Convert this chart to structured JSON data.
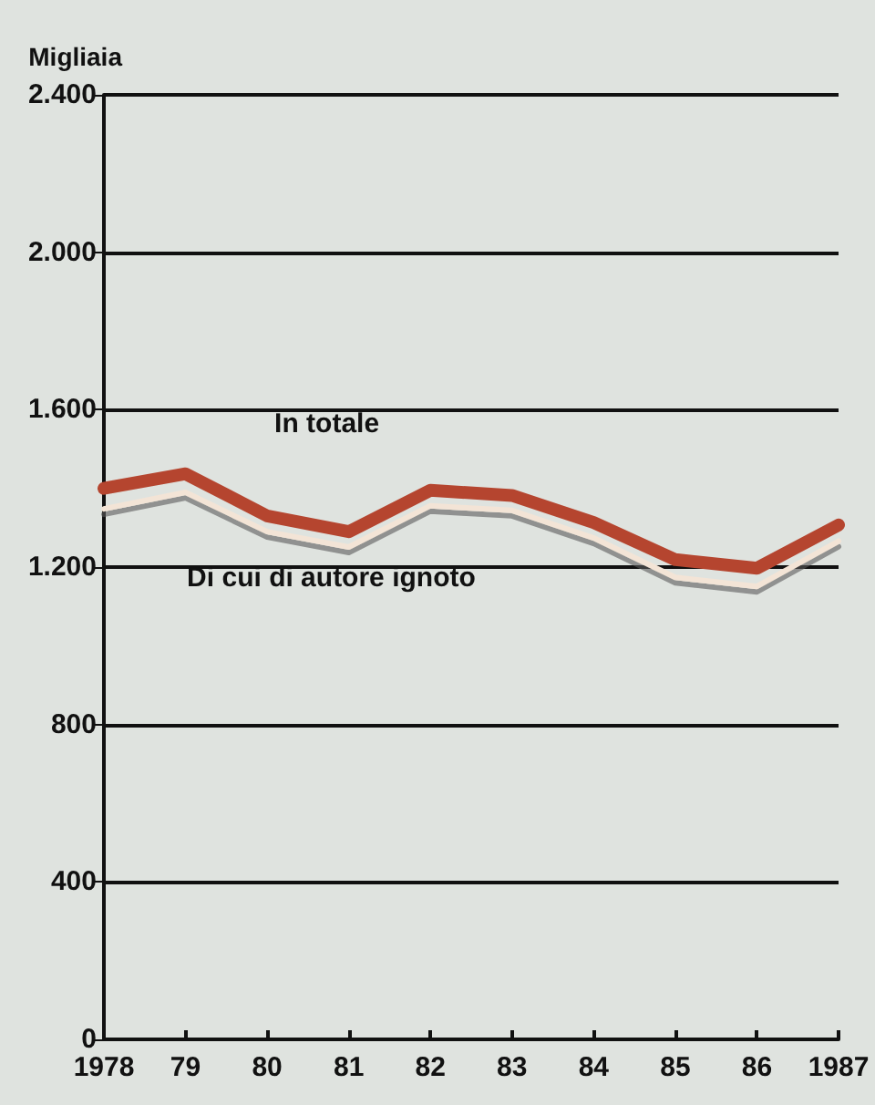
{
  "chart_data": {
    "type": "line",
    "ylabel": "Migliaia",
    "categories": [
      "1978",
      "79",
      "80",
      "81",
      "82",
      "83",
      "84",
      "85",
      "86",
      "1987"
    ],
    "series": [
      {
        "name": "In totale",
        "color": "#b5452f",
        "values": [
          1400,
          1437,
          1330,
          1290,
          1395,
          1382,
          1313,
          1219,
          1197,
          1307
        ]
      },
      {
        "name": "Di cui di autore ignoto",
        "color": "#f3e4d6",
        "values": [
          1348,
          1390,
          1290,
          1251,
          1356,
          1344,
          1274,
          1174,
          1151,
          1266
        ]
      }
    ],
    "ylim": [
      0,
      2400
    ],
    "yticks": [
      0,
      {
        "value": 400,
        "label": "400"
      },
      {
        "value": 800,
        "label": "800"
      },
      {
        "value": 1200,
        "label": "1.200"
      },
      {
        "value": 1600,
        "label": "1.600"
      },
      {
        "value": 2000,
        "label": "2.000"
      },
      {
        "value": 2400,
        "label": "2.400"
      }
    ],
    "grid": "y",
    "legend": false,
    "marker": "none",
    "line_style": "solid"
  }
}
